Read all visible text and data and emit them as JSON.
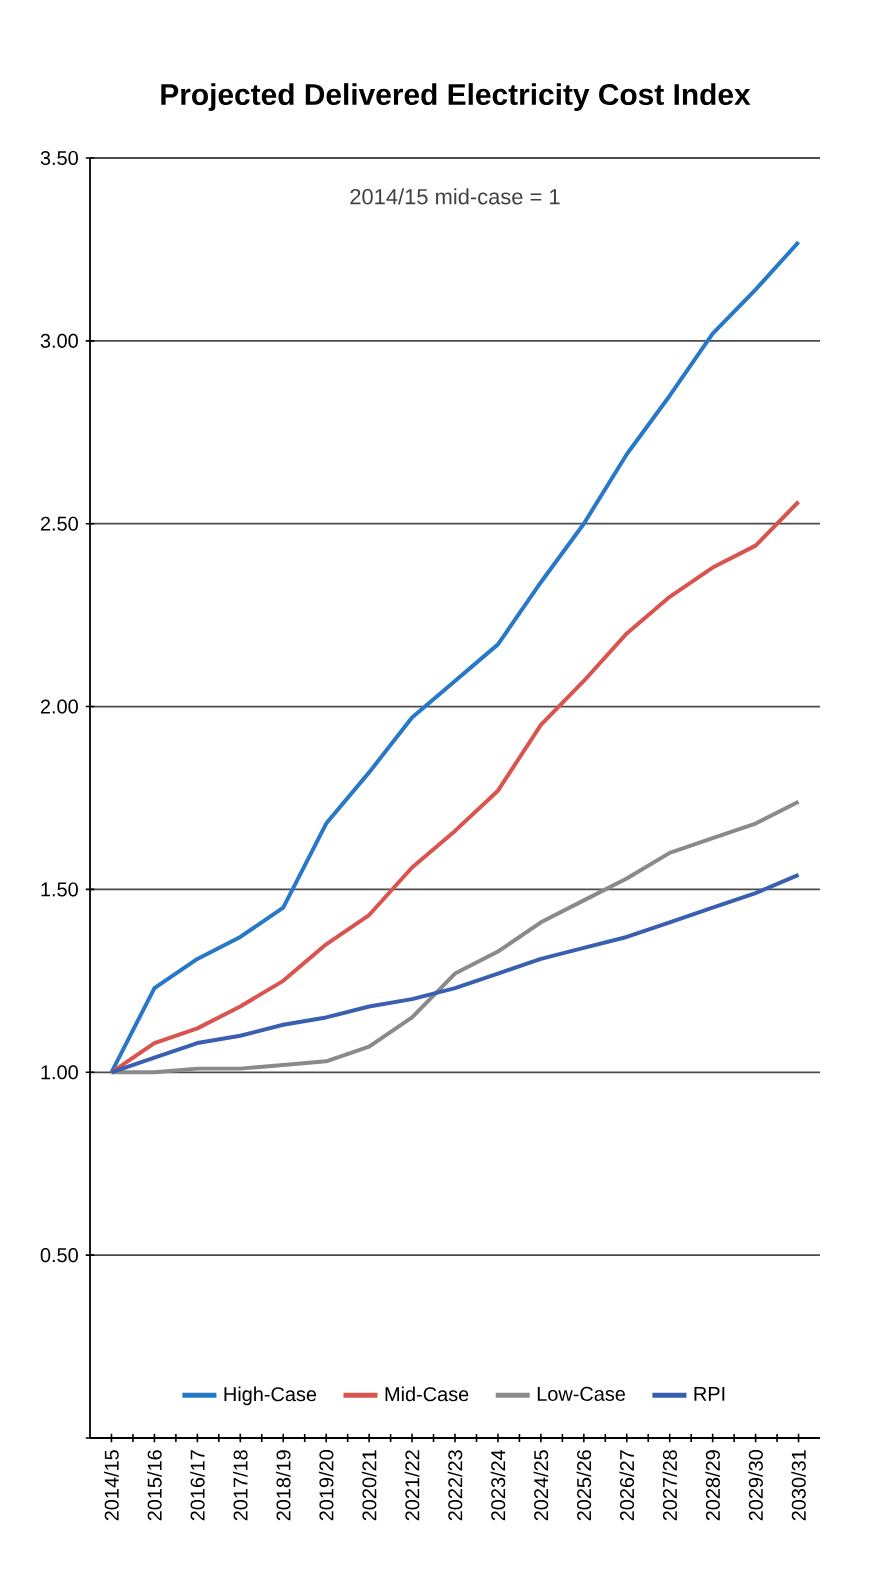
{
  "chart_data": {
    "type": "line",
    "title": "Projected Delivered Electricity Cost Index",
    "annotations": [
      "2014/15 mid-case = 1"
    ],
    "categories": [
      "2014/15",
      "2015/16",
      "2016/17",
      "2017/18",
      "2018/19",
      "2019/20",
      "2020/21",
      "2021/22",
      "2022/23",
      "2023/24",
      "2024/25",
      "2025/26",
      "2026/27",
      "2027/28",
      "2028/29",
      "2029/30",
      "2030/31"
    ],
    "series": [
      {
        "name": "High-Case",
        "color": "#2878c8",
        "values": [
          1.0,
          1.23,
          1.31,
          1.37,
          1.45,
          1.68,
          1.82,
          1.97,
          2.07,
          2.17,
          2.34,
          2.5,
          2.69,
          2.85,
          3.02,
          3.14,
          3.27
        ]
      },
      {
        "name": "Mid-Case",
        "color": "#d9534f",
        "values": [
          1.0,
          1.08,
          1.12,
          1.18,
          1.25,
          1.35,
          1.43,
          1.56,
          1.66,
          1.77,
          1.95,
          2.07,
          2.2,
          2.3,
          2.38,
          2.44,
          2.56
        ]
      },
      {
        "name": "Low-Case",
        "color": "#8a8a8a",
        "values": [
          1.0,
          1.0,
          1.01,
          1.01,
          1.02,
          1.03,
          1.07,
          1.15,
          1.27,
          1.33,
          1.41,
          1.47,
          1.53,
          1.6,
          1.64,
          1.68,
          1.74
        ]
      },
      {
        "name": "RPI",
        "color": "#3a5fb0",
        "values": [
          1.0,
          1.04,
          1.08,
          1.1,
          1.13,
          1.15,
          1.18,
          1.2,
          1.23,
          1.27,
          1.31,
          1.34,
          1.37,
          1.41,
          1.45,
          1.49,
          1.54
        ]
      }
    ],
    "ylim": [
      0,
      3.5
    ],
    "yticks": [
      {
        "value": 0,
        "label": null
      },
      {
        "value": 0.5,
        "label": "0.50"
      },
      {
        "value": 1,
        "label": "1.00"
      },
      {
        "value": 1.5,
        "label": "1.50"
      },
      {
        "value": 2,
        "label": "2.00"
      },
      {
        "value": 2.5,
        "label": "2.50"
      },
      {
        "value": 3,
        "label": "3.00"
      },
      {
        "value": 3.5,
        "label": "3.50"
      }
    ],
    "grid": "y",
    "legend": "bottom",
    "marker": "none",
    "line_style": "solid"
  }
}
